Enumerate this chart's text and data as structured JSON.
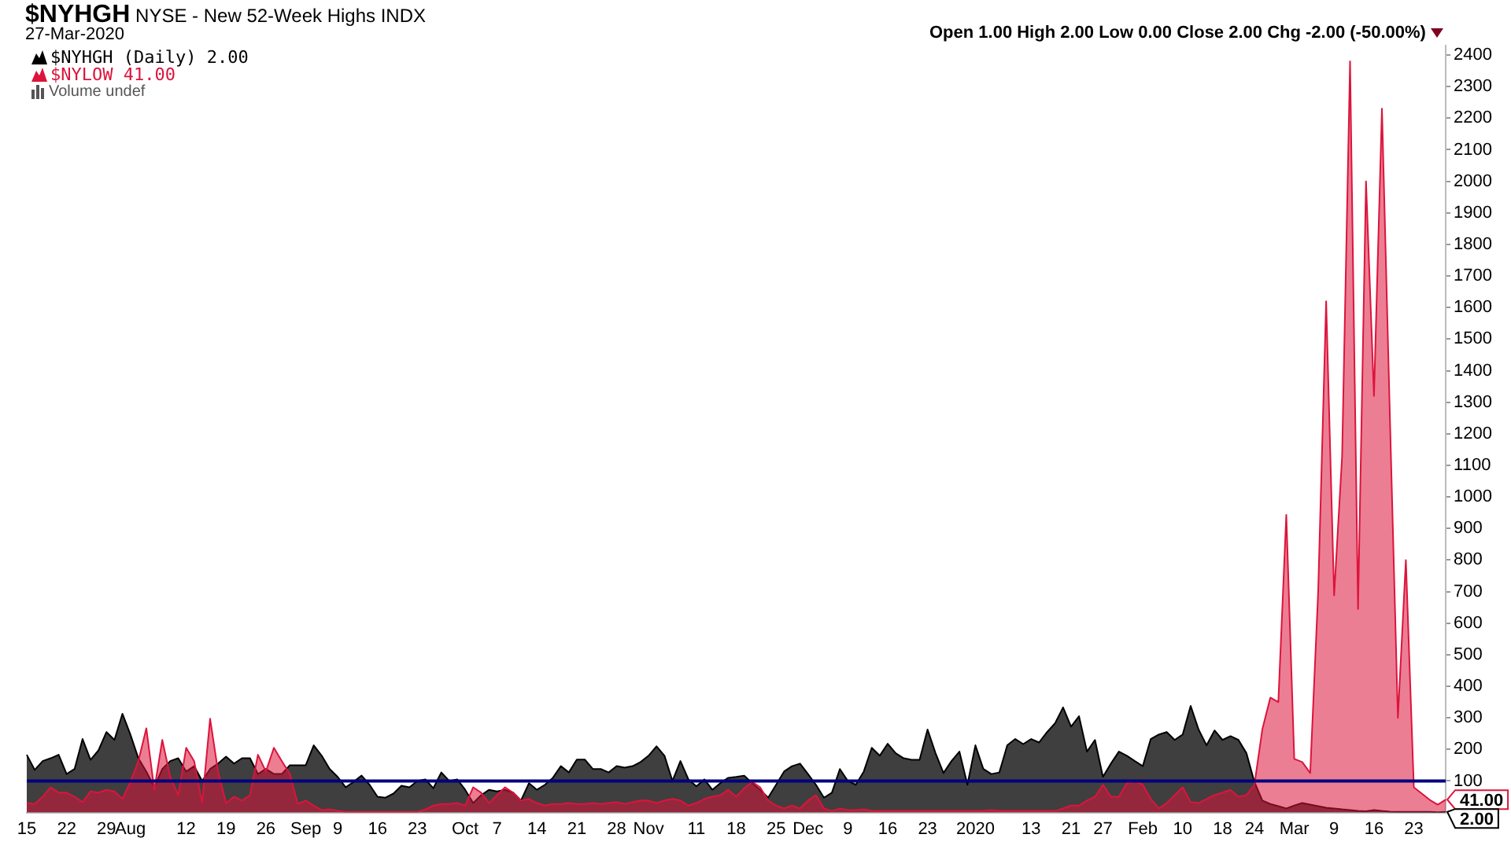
{
  "chart_data": {
    "type": "area",
    "title": "$NYHGH",
    "subtitle": "NYSE - New 52-Week Highs INDX",
    "categories": [
      "15",
      null,
      null,
      null,
      null,
      "22",
      null,
      null,
      null,
      null,
      "29",
      null,
      null,
      "Aug",
      null,
      null,
      null,
      null,
      null,
      null,
      "12",
      null,
      null,
      null,
      null,
      "19",
      null,
      null,
      null,
      null,
      "26",
      null,
      null,
      null,
      null,
      "Sep",
      null,
      null,
      null,
      "9",
      null,
      null,
      null,
      null,
      "16",
      null,
      null,
      null,
      null,
      "23",
      null,
      null,
      null,
      null,
      null,
      "Oct",
      null,
      null,
      null,
      "7",
      null,
      null,
      null,
      null,
      "14",
      null,
      null,
      null,
      null,
      "21",
      null,
      null,
      null,
      null,
      "28",
      null,
      null,
      null,
      "Nov",
      null,
      null,
      null,
      null,
      null,
      "11",
      null,
      null,
      null,
      null,
      "18",
      null,
      null,
      null,
      null,
      "25",
      null,
      null,
      null,
      "Dec",
      null,
      null,
      null,
      null,
      "9",
      null,
      null,
      null,
      null,
      "16",
      null,
      null,
      null,
      null,
      "23",
      null,
      null,
      null,
      null,
      null,
      "2020",
      null,
      null,
      null,
      null,
      null,
      null,
      "13",
      null,
      null,
      null,
      null,
      "21",
      null,
      null,
      null,
      "27",
      null,
      null,
      null,
      null,
      "Feb",
      null,
      null,
      null,
      null,
      "10",
      null,
      null,
      null,
      null,
      "18",
      null,
      null,
      null,
      "24",
      null,
      null,
      null,
      null,
      "Mar",
      null,
      null,
      null,
      null,
      "9",
      null,
      null,
      null,
      null,
      "16",
      null,
      null,
      null,
      null,
      "23",
      null,
      null,
      null,
      null
    ],
    "series": [
      {
        "name": "$NYHGH (Daily) 2.00",
        "color": "#000000",
        "values": [
          183,
          135,
          163,
          172,
          183,
          122,
          138,
          233,
          167,
          197,
          255,
          230,
          313,
          247,
          172,
          130,
          80,
          138,
          163,
          172,
          130,
          147,
          100,
          138,
          155,
          177,
          155,
          172,
          172,
          122,
          138,
          122,
          122,
          150,
          150,
          150,
          213,
          180,
          138,
          113,
          80,
          97,
          117,
          88,
          50,
          47,
          60,
          85,
          80,
          100,
          105,
          77,
          127,
          100,
          105,
          72,
          30,
          55,
          72,
          67,
          72,
          63,
          38,
          93,
          72,
          88,
          110,
          147,
          127,
          168,
          168,
          138,
          138,
          127,
          147,
          142,
          147,
          160,
          180,
          210,
          180,
          100,
          163,
          105,
          83,
          105,
          72,
          93,
          110,
          113,
          117,
          93,
          72,
          47,
          88,
          130,
          147,
          155,
          122,
          88,
          47,
          63,
          138,
          100,
          88,
          130,
          205,
          180,
          218,
          188,
          172,
          167,
          167,
          263,
          188,
          125,
          163,
          193,
          88,
          213,
          138,
          122,
          127,
          213,
          233,
          217,
          233,
          222,
          255,
          283,
          333,
          272,
          305,
          193,
          230,
          113,
          155,
          193,
          180,
          163,
          147,
          233,
          247,
          255,
          230,
          247,
          338,
          263,
          213,
          260,
          230,
          242,
          230,
          188,
          97,
          38,
          27,
          20,
          13,
          22,
          30,
          25,
          20,
          15,
          13,
          10,
          8,
          5,
          4,
          8,
          5,
          3,
          2,
          2,
          2,
          2,
          2,
          1,
          2
        ]
      },
      {
        "name": "$NYLOW 41.00",
        "color": "#dc143c",
        "values": [
          30,
          27,
          50,
          80,
          63,
          63,
          50,
          33,
          67,
          63,
          72,
          67,
          43,
          97,
          163,
          267,
          72,
          230,
          113,
          55,
          205,
          163,
          30,
          297,
          130,
          30,
          50,
          38,
          55,
          183,
          130,
          205,
          163,
          122,
          27,
          38,
          22,
          8,
          10,
          5,
          2,
          2,
          2,
          2,
          2,
          2,
          2,
          2,
          2,
          2,
          10,
          22,
          27,
          27,
          30,
          22,
          80,
          63,
          30,
          55,
          80,
          63,
          38,
          43,
          30,
          22,
          27,
          27,
          30,
          27,
          27,
          30,
          27,
          30,
          33,
          27,
          33,
          38,
          38,
          30,
          38,
          43,
          38,
          22,
          30,
          43,
          50,
          55,
          72,
          50,
          77,
          97,
          80,
          38,
          22,
          13,
          22,
          13,
          38,
          55,
          13,
          5,
          13,
          8,
          8,
          10,
          5,
          5,
          5,
          5,
          5,
          5,
          5,
          5,
          5,
          5,
          5,
          5,
          5,
          5,
          5,
          8,
          5,
          5,
          5,
          5,
          5,
          5,
          5,
          5,
          13,
          22,
          22,
          38,
          50,
          88,
          50,
          50,
          93,
          100,
          88,
          43,
          13,
          30,
          55,
          80,
          33,
          30,
          43,
          55,
          63,
          72,
          50,
          55,
          88,
          264,
          364,
          350,
          943,
          170,
          160,
          125,
          700,
          1620,
          688,
          1128,
          2380,
          645,
          2000,
          1320,
          2230,
          1250,
          300,
          800,
          80,
          60,
          40,
          25,
          41
        ]
      }
    ],
    "ylim": [
      0,
      2430
    ],
    "yticks": [
      100,
      200,
      300,
      400,
      500,
      600,
      700,
      800,
      900,
      1000,
      1100,
      1200,
      1300,
      1400,
      1500,
      1600,
      1700,
      1800,
      1900,
      2000,
      2100,
      2200,
      2300,
      2400
    ],
    "ref_lines": [
      {
        "axis": "y",
        "value": 100,
        "color": "#000080"
      }
    ],
    "legend": "top left",
    "grid": false,
    "annotations": [
      "27-Mar-2020",
      "Volume undef",
      "Open 1.00 High 2.00 Low 0.00 Close 2.00 Chg -2.00 (-50.00%)",
      "41.00",
      "2.00"
    ]
  }
}
